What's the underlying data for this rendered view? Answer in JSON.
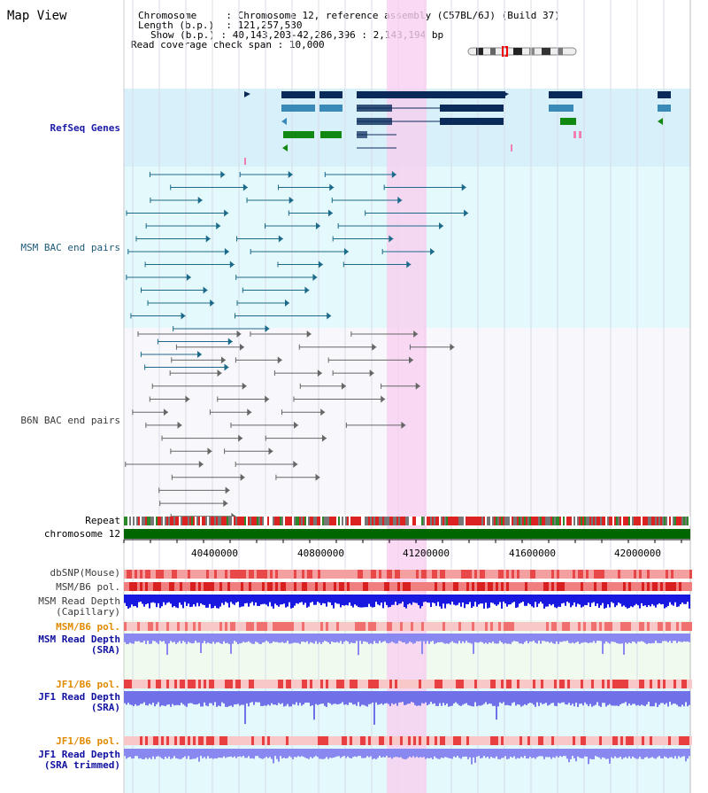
{
  "title": "Map View",
  "info": {
    "chromosome_label": "Chromosome",
    "chromosome_value": "Chromosome 12, reference assembly (C57BL/6J) (Build 37)",
    "length_label": "Length (b.p.)",
    "length_value": "121,257,530",
    "show_label": "Show (b.p.)",
    "show_value": "40,143,203-42,286,396 : 2,143,194 bp",
    "coverage_label": "Read coverage check span",
    "coverage_value": "10,000"
  },
  "tracks": {
    "refseq": "RefSeq Genes",
    "msm_bac": "MSM BAC end pairs",
    "b6n_bac": "B6N BAC end pairs",
    "repeat": "Repeat",
    "chromosome": "chromosome 12",
    "dbsnp": "dbSNP(Mouse)",
    "msm_b6_pol": "MSM/B6 pol.",
    "msm_read_depth_cap": "MSM Read Depth\n(Capillary)",
    "msm_b6_pol2": "MSM/B6 pol.",
    "msm_read_depth_sra": "MSM Read Depth\n(SRA)",
    "jf1_b6_pol": "JF1/B6 pol.",
    "jf1_read_depth_sra": "JF1 Read Depth\n(SRA)",
    "jf1_b6_pol2": "JF1/B6 pol.",
    "jf1_read_depth_trimmed": "JF1 Read Depth\n(SRA trimmed)"
  },
  "axis_ticks": [
    "40400000",
    "40800000",
    "41200000",
    "41600000",
    "42000000"
  ],
  "colors": {
    "refseq_bg": "#d8f0fa",
    "msm_bg": "#e0f8fa",
    "highlight": "#f8d8f4",
    "chromosome_bar": "#006600",
    "gene_dark": "#0a2a5a",
    "gene_mid": "#3a8ab8",
    "gene_green": "#118811",
    "bac_msm": "#1c6a8a",
    "bac_b6n": "#666666"
  }
}
